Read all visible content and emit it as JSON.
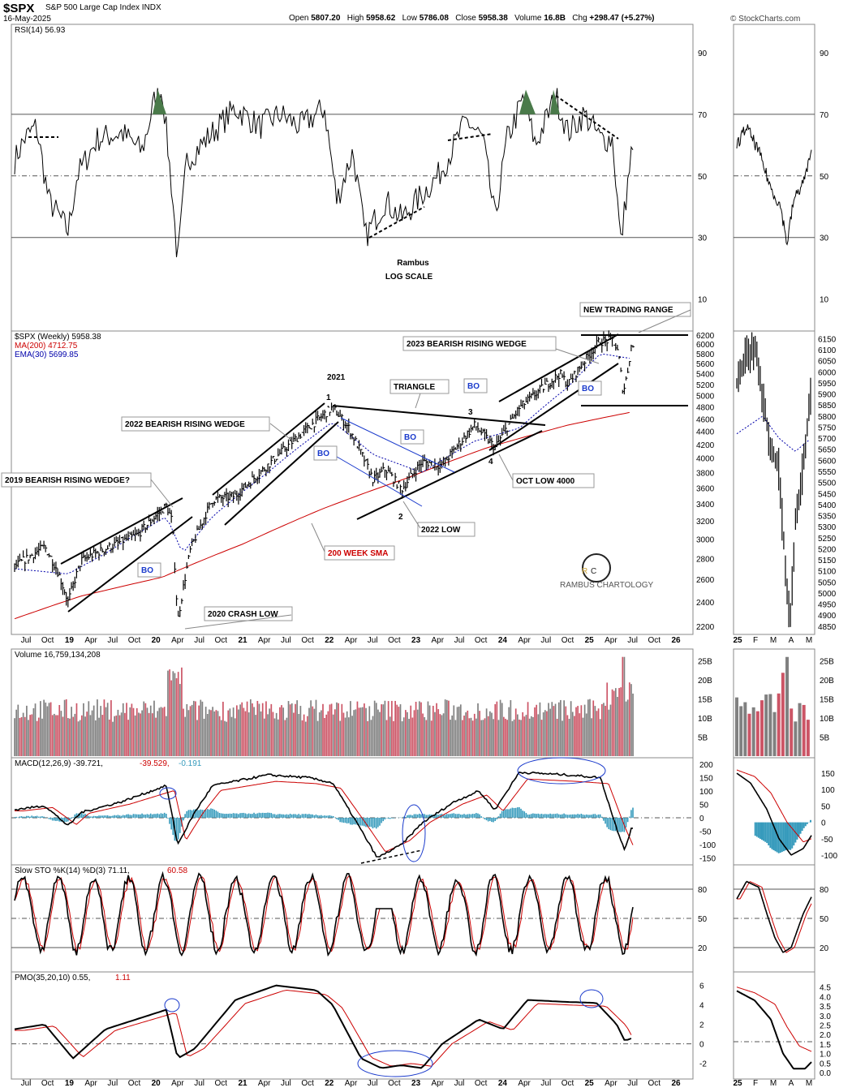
{
  "header": {
    "symbol": "$SPX",
    "description": "S&P 500 Large Cap Index INDX",
    "date": "16-May-2025",
    "open_label": "Open",
    "open": "5807.20",
    "high_label": "High",
    "high": "5958.62",
    "low_label": "Low",
    "low": "5786.08",
    "close_label": "Close",
    "close": "5958.38",
    "volume_label": "Volume",
    "volume": "16.8B",
    "chg_label": "Chg",
    "chg": "+298.47 (+5.27%)",
    "source": "© StockCharts.com"
  },
  "colors": {
    "price": "#000000",
    "ma200": "#cc0000",
    "ema30": "#0000aa",
    "vol_up": "#808080",
    "vol_down": "#cc5566",
    "macd_hist": "#3399bb",
    "trendline_blue": "#1a3acc",
    "ellipse": "#1a3acc",
    "rsi_fill": "#4a7a4a"
  },
  "x_axis": {
    "main_ticks": [
      "Jul",
      "Oct",
      "19",
      "Apr",
      "Jul",
      "Oct",
      "20",
      "Apr",
      "Jul",
      "Oct",
      "21",
      "Apr",
      "Jul",
      "Oct",
      "22",
      "Apr",
      "Jul",
      "Oct",
      "23",
      "Apr",
      "Jul",
      "Oct",
      "24",
      "Apr",
      "Jul",
      "Oct",
      "25",
      "Apr",
      "Jul",
      "Oct",
      "26"
    ],
    "side_ticks": [
      "25",
      "F",
      "M",
      "A",
      "M"
    ]
  },
  "panels": {
    "rsi": {
      "legend": "RSI(14) 56.93",
      "ticks": [
        "90",
        "70",
        "50",
        "30",
        "10"
      ],
      "annotation1": "Rambus",
      "annotation2": "LOG SCALE"
    },
    "price": {
      "legend_main": "$SPX (Weekly) 5958.38",
      "legend_ma": "MA(200) 4712.75",
      "legend_ema": "EMA(30) 5699.85",
      "ticks": [
        "6200",
        "6000",
        "5800",
        "5600",
        "5400",
        "5200",
        "5000",
        "4800",
        "4600",
        "4400",
        "4200",
        "4000",
        "3800",
        "3600",
        "3400",
        "3200",
        "3000",
        "2800",
        "2600",
        "2400",
        "2200"
      ],
      "side_ticks": [
        "6150",
        "6100",
        "6050",
        "6000",
        "5950",
        "5900",
        "5850",
        "5800",
        "5750",
        "5700",
        "5650",
        "5600",
        "5550",
        "5500",
        "5450",
        "5400",
        "5350",
        "5300",
        "5250",
        "5200",
        "5150",
        "5100",
        "5050",
        "5000",
        "4950",
        "4900",
        "4850"
      ]
    },
    "volume": {
      "legend": "Volume 16,759,134,208",
      "ticks": [
        "25B",
        "20B",
        "15B",
        "10B",
        "5B"
      ]
    },
    "macd": {
      "legend_a": "MACD(12,26,9) -39.721,",
      "legend_b": "-39.529,",
      "legend_c": "-0.191",
      "ticks": [
        "200",
        "150",
        "100",
        "50",
        "0",
        "-50",
        "-100",
        "-150"
      ],
      "side_ticks": [
        "150",
        "100",
        "50",
        "0",
        "-50",
        "-100"
      ]
    },
    "sto": {
      "legend_a": "Slow STO %K(14) %D(3) 71.11,",
      "legend_b": "60.58",
      "ticks": [
        "80",
        "50",
        "20"
      ]
    },
    "pmo": {
      "legend_a": "PMO(35,20,10) 0.55,",
      "legend_b": "1.11",
      "ticks": [
        "6",
        "4",
        "2",
        "0",
        "-2"
      ],
      "side_ticks": [
        "4.5",
        "4.0",
        "3.5",
        "3.0",
        "2.5",
        "2.0",
        "1.5",
        "1.0",
        "0.5",
        "0.0"
      ]
    }
  },
  "annotations": {
    "wedge_2019": "2019 BEARISH RISING WEDGE?",
    "wedge_2022": "2022 BEARISH RISING WEDGE",
    "wedge_2023": "2023 BEARISH RISING WEDGE",
    "triangle": "TRIANGLE",
    "new_range": "NEW TRADING RANGE",
    "crash_2020": "2020 CRASH LOW",
    "low_2022": "2022 LOW",
    "oct_low": "OCT LOW 4000",
    "sma200": "200 WEEK SMA",
    "year_2021": "2021",
    "bo": "BO",
    "n1": "1",
    "n2": "2",
    "n3": "3",
    "n4": "4",
    "logo_text": "RAMBUS CHARTOLOGY"
  },
  "chart_data": {
    "type": "line",
    "title": "$SPX S&P 500 Large Cap Index INDX",
    "scale": "log",
    "x": [
      "2018-07",
      "2018-10",
      "2019-01",
      "2019-04",
      "2019-07",
      "2019-10",
      "2020-01",
      "2020-03",
      "2020-07",
      "2020-10",
      "2021-01",
      "2021-04",
      "2021-07",
      "2021-10",
      "2022-01",
      "2022-04",
      "2022-06",
      "2022-10",
      "2023-01",
      "2023-04",
      "2023-07",
      "2023-10",
      "2024-01",
      "2024-04",
      "2024-07",
      "2024-10",
      "2025-01",
      "2025-04",
      "2025-05"
    ],
    "series": [
      {
        "name": "$SPX (Weekly)",
        "values": [
          2800,
          2750,
          2450,
          2900,
          3000,
          3050,
          3300,
          2250,
          3200,
          3400,
          3750,
          4150,
          4350,
          4600,
          4750,
          4200,
          3700,
          3580,
          3950,
          4100,
          4550,
          4150,
          4800,
          5100,
          5550,
          5800,
          6050,
          5050,
          5958
        ]
      },
      {
        "name": "MA(200)",
        "values": [
          2300,
          2330,
          2360,
          2400,
          2450,
          2500,
          2560,
          2600,
          2680,
          2760,
          2850,
          2950,
          3080,
          3200,
          3320,
          3450,
          3550,
          3650,
          3750,
          3850,
          3950,
          4050,
          4150,
          4280,
          4400,
          4500,
          4600,
          4680,
          4712
        ]
      },
      {
        "name": "EMA(30)",
        "values": [
          2700,
          2750,
          2650,
          2750,
          2900,
          2950,
          3150,
          3000,
          3050,
          3300,
          3600,
          3950,
          4250,
          4450,
          4600,
          4450,
          4050,
          3850,
          3850,
          4000,
          4300,
          4300,
          4500,
          4950,
          5350,
          5600,
          5850,
          5750,
          5700
        ]
      }
    ],
    "ylim": [
      2200,
      6200
    ],
    "rsi": {
      "ticks": [
        10,
        30,
        50,
        70,
        90
      ],
      "last": 56.93
    },
    "macd": {
      "last": [
        -39.721,
        -39.529,
        -0.191
      ]
    },
    "sto": {
      "last": [
        71.11,
        60.58
      ]
    },
    "pmo": {
      "last": [
        0.55,
        1.11
      ]
    }
  }
}
